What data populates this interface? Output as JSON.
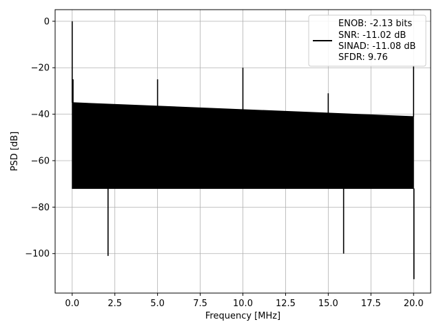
{
  "chart_data": {
    "type": "line",
    "xlabel": "Frequency [MHz]",
    "ylabel": "PSD [dB]",
    "xlim": [
      -1.0,
      21.0
    ],
    "ylim": [
      -117,
      5
    ],
    "x_ticks": [
      0.0,
      2.5,
      5.0,
      7.5,
      10.0,
      12.5,
      15.0,
      17.5,
      20.0
    ],
    "x_tick_labels": [
      "0.0",
      "2.5",
      "5.0",
      "7.5",
      "10.0",
      "12.5",
      "15.0",
      "17.5",
      "20.0"
    ],
    "y_ticks": [
      0,
      -20,
      -40,
      -60,
      -80,
      -100
    ],
    "y_tick_labels": [
      "0",
      "−20",
      "−40",
      "−60",
      "−80",
      "−100"
    ],
    "grid": true,
    "legend_position": "top-right",
    "legend_lines": [
      "ENOB: -2.13 bits",
      "SNR: -11.02 dB",
      "SINAD: -11.08 dB",
      "SFDR: 9.76"
    ],
    "series": [
      {
        "color": "#000000",
        "noise_floor_band": {
          "x": [
            0.0,
            20.0
          ],
          "top_db": [
            -35,
            -41
          ],
          "bottom_db": [
            -72,
            -72
          ]
        },
        "x": [
          0.0,
          0.05,
          5.0,
          10.0,
          15.0,
          20.0,
          20.02
        ],
        "y": [
          0,
          -25,
          -25,
          -20,
          -31,
          -19,
          -111
        ]
      }
    ],
    "notable_minima": [
      {
        "x": 2.1,
        "y": -101
      },
      {
        "x": 15.9,
        "y": -100
      },
      {
        "x": 20.02,
        "y": -111
      }
    ]
  }
}
